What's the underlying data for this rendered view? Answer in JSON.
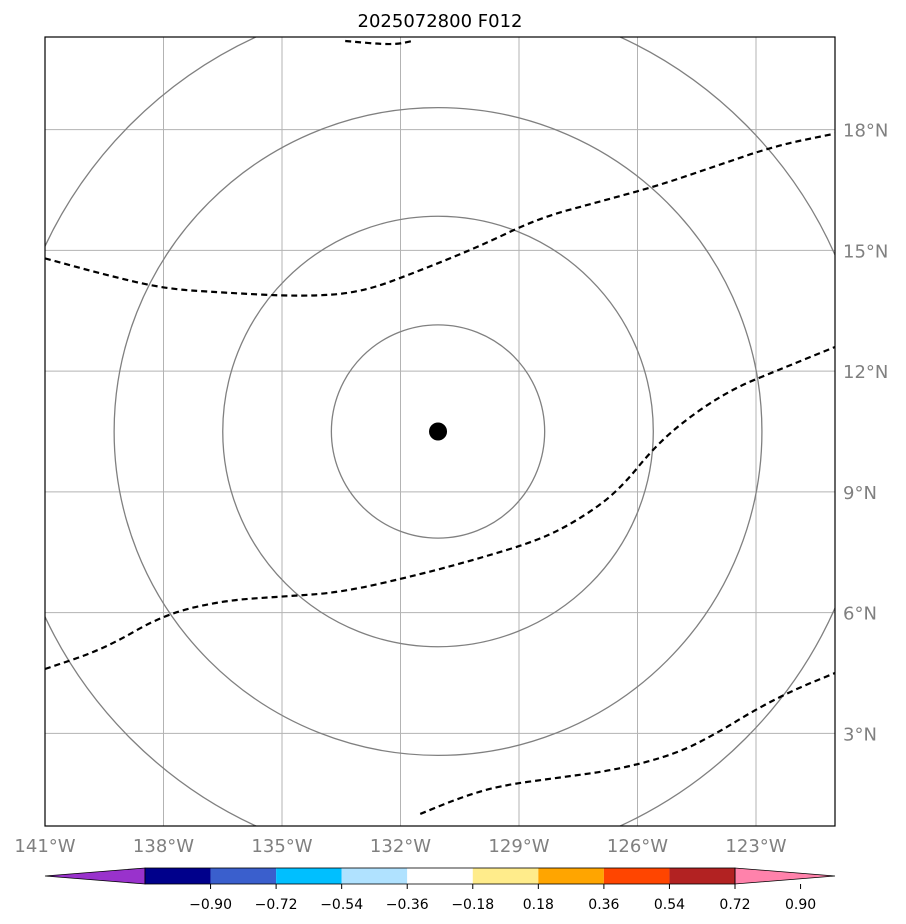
{
  "title": "2025072800 F012",
  "map": {
    "lon_range": [
      -141,
      -121
    ],
    "lat_range": [
      0.7,
      20.3
    ],
    "lon_ticks": [
      {
        "value": -141,
        "label": "141°W"
      },
      {
        "value": -138,
        "label": "138°W"
      },
      {
        "value": -135,
        "label": "135°W"
      },
      {
        "value": -132,
        "label": "132°W"
      },
      {
        "value": -129,
        "label": "129°W"
      },
      {
        "value": -126,
        "label": "126°W"
      },
      {
        "value": -123,
        "label": "123°W"
      }
    ],
    "lat_ticks": [
      {
        "value": 18,
        "label": "18°N"
      },
      {
        "value": 15,
        "label": "15°N"
      },
      {
        "value": 12,
        "label": "12°N"
      },
      {
        "value": 9,
        "label": "9°N"
      },
      {
        "value": 6,
        "label": "6°N"
      },
      {
        "value": 3,
        "label": "3°N"
      }
    ],
    "grid": true,
    "center": {
      "lon": -131.05,
      "lat": 10.5
    },
    "range_rings_deg": [
      2.7,
      5.45,
      8.2,
      11.0
    ],
    "colors": {
      "grid": "#b3b3b3",
      "rings": "#808080",
      "contours": "#000000",
      "tick_labels": "#808080",
      "center_marker": "#000000"
    },
    "contours": [
      {
        "style": "dashed",
        "points": [
          [
            -133.4,
            20.2
          ],
          [
            -132.2,
            20.1
          ],
          [
            -131.7,
            20.2
          ]
        ]
      },
      {
        "style": "dashed",
        "points": [
          [
            -141,
            14.8
          ],
          [
            -139.5,
            14.4
          ],
          [
            -138,
            14.05
          ],
          [
            -136.5,
            13.95
          ],
          [
            -134.5,
            13.85
          ],
          [
            -133,
            13.95
          ],
          [
            -131.5,
            14.5
          ],
          [
            -130,
            15.1
          ],
          [
            -128.5,
            15.8
          ],
          [
            -127,
            16.2
          ],
          [
            -125.5,
            16.6
          ],
          [
            -124,
            17.1
          ],
          [
            -122.5,
            17.6
          ],
          [
            -121,
            17.9
          ]
        ]
      },
      {
        "style": "dashed",
        "points": [
          [
            -141,
            4.6
          ],
          [
            -139.5,
            5.1
          ],
          [
            -138,
            5.95
          ],
          [
            -136.5,
            6.3
          ],
          [
            -135,
            6.4
          ],
          [
            -133.5,
            6.5
          ],
          [
            -131.5,
            6.95
          ],
          [
            -130,
            7.35
          ],
          [
            -128.5,
            7.8
          ],
          [
            -127.5,
            8.3
          ],
          [
            -126.5,
            9.0
          ],
          [
            -125.5,
            10.2
          ],
          [
            -124.5,
            11.0
          ],
          [
            -123.5,
            11.6
          ],
          [
            -122.5,
            12.0
          ],
          [
            -121,
            12.6
          ]
        ]
      },
      {
        "style": "dashed",
        "points": [
          [
            -131.5,
            1.0
          ],
          [
            -130.5,
            1.4
          ],
          [
            -129.5,
            1.7
          ],
          [
            -128,
            1.9
          ],
          [
            -126.5,
            2.1
          ],
          [
            -125,
            2.5
          ],
          [
            -124,
            3.0
          ],
          [
            -123,
            3.6
          ],
          [
            -122,
            4.1
          ],
          [
            -121,
            4.5
          ]
        ]
      }
    ]
  },
  "colorbar": {
    "ticks": [
      "−0.90",
      "−0.72",
      "−0.54",
      "−0.36",
      "−0.18",
      "0.18",
      "0.36",
      "0.54",
      "0.72",
      "0.90"
    ],
    "colors": [
      "#9932cc",
      "#00008b",
      "#3a5fcd",
      "#00bfff",
      "#b0e2ff",
      "#ffffff",
      "#ffec8b",
      "#ffa500",
      "#ff4500",
      "#b22222",
      "#ff82ab"
    ]
  }
}
